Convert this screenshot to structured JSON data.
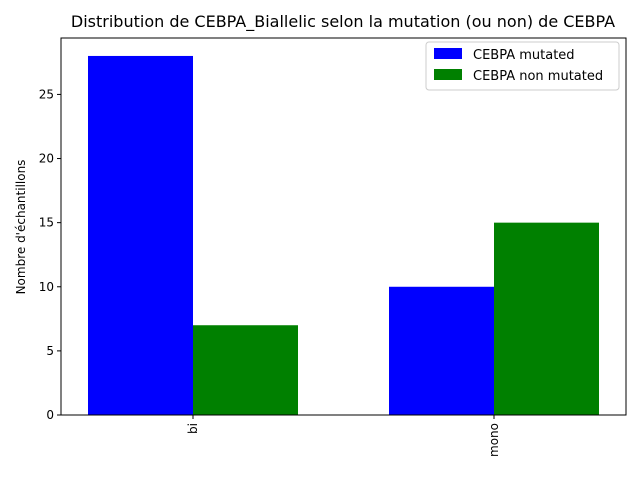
{
  "chart_data": {
    "type": "bar",
    "title": "Distribution de CEBPA_Biallelic selon la mutation (ou non) de CEBPA",
    "xlabel": "",
    "ylabel": "Nombre d'échantillons",
    "categories": [
      "bi",
      "mono"
    ],
    "series": [
      {
        "name": "CEBPA mutated",
        "color": "#0000ff",
        "values": [
          28,
          10
        ]
      },
      {
        "name": "CEBPA non mutated",
        "color": "#008000",
        "values": [
          7,
          15
        ]
      }
    ],
    "ylim": [
      0,
      29.4
    ],
    "yticks": [
      0,
      5,
      10,
      15,
      20,
      25
    ],
    "grid": false,
    "legend_position": "top-right"
  }
}
